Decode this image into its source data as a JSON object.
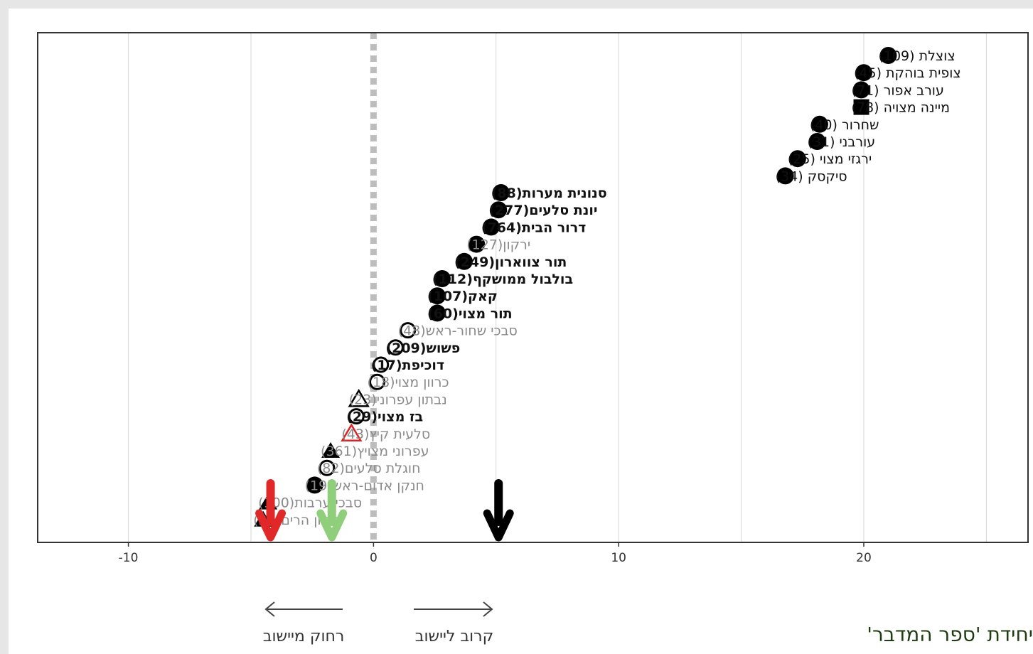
{
  "chart_data": {
    "type": "scatter",
    "title": "",
    "xlabel": "",
    "ylabel": "",
    "xlim": [
      -13.7,
      26.7
    ],
    "xticks": [
      -10,
      0,
      10,
      20
    ],
    "xtick_labels": [
      "-10",
      "0",
      "10",
      "20"
    ],
    "grid_x": [
      -10,
      -5,
      0,
      5,
      10,
      15,
      20,
      25
    ],
    "zero_line_x": 0,
    "points": [
      {
        "label": "צוצלת (109)",
        "x": 21.0,
        "marker": "circle-filled",
        "color": "#000000",
        "text_color": "#111111",
        "bold": false
      },
      {
        "label": "צופית בוהקת (45)",
        "x": 20.0,
        "marker": "circle-filled",
        "color": "#000000",
        "text_color": "#111111",
        "bold": false
      },
      {
        "label": "עורב אפור (71)",
        "x": 19.9,
        "marker": "circle-filled",
        "color": "#000000",
        "text_color": "#111111",
        "bold": false
      },
      {
        "label": "מיינה מצויה (78)",
        "x": 19.9,
        "marker": "square-filled",
        "color": "#000000",
        "text_color": "#111111",
        "bold": false
      },
      {
        "label": "שחרור (40)",
        "x": 18.2,
        "marker": "circle-filled",
        "color": "#000000",
        "text_color": "#111111",
        "bold": false
      },
      {
        "label": "עורבני (31)",
        "x": 18.1,
        "marker": "circle-filled",
        "color": "#000000",
        "text_color": "#111111",
        "bold": false
      },
      {
        "label": "ירגזי מצוי (25)",
        "x": 17.3,
        "marker": "circle-filled",
        "color": "#000000",
        "text_color": "#111111",
        "bold": false
      },
      {
        "label": "סיקסק (34)",
        "x": 16.8,
        "marker": "circle-filled",
        "color": "#000000",
        "text_color": "#111111",
        "bold": false
      },
      {
        "label": "סנונית מערות(88)",
        "x": 5.2,
        "marker": "circle-filled",
        "color": "#000000",
        "text_color": "#111111",
        "bold": true
      },
      {
        "label": "יונת סלעים(277)",
        "x": 5.1,
        "marker": "circle-filled",
        "color": "#000000",
        "text_color": "#111111",
        "bold": true
      },
      {
        "label": "דרור הבית(764)",
        "x": 4.8,
        "marker": "circle-filled",
        "color": "#000000",
        "text_color": "#111111",
        "bold": true
      },
      {
        "label": "ירקון(127)",
        "x": 4.2,
        "marker": "circle-filled",
        "color": "#000000",
        "text_color": "#8a8a8a",
        "bold": false
      },
      {
        "label": "תור צווארון(249)",
        "x": 3.7,
        "marker": "circle-filled",
        "color": "#000000",
        "text_color": "#111111",
        "bold": true
      },
      {
        "label": "בולבול ממושקף(112)",
        "x": 2.8,
        "marker": "circle-filled",
        "color": "#000000",
        "text_color": "#111111",
        "bold": true
      },
      {
        "label": "קאק(107)",
        "x": 2.6,
        "marker": "circle-filled",
        "color": "#000000",
        "text_color": "#111111",
        "bold": true
      },
      {
        "label": "תור מצוי(60)",
        "x": 2.6,
        "marker": "circle-filled",
        "color": "#000000",
        "text_color": "#111111",
        "bold": true
      },
      {
        "label": "סבכי שחור-ראש(48)",
        "x": 1.4,
        "marker": "circle-open",
        "color": "#000000",
        "text_color": "#8a8a8a",
        "bold": false
      },
      {
        "label": "פשוש(209)",
        "x": 0.9,
        "marker": "circle-open",
        "color": "#000000",
        "text_color": "#111111",
        "bold": true
      },
      {
        "label": "דוכיפת(17)",
        "x": 0.3,
        "marker": "circle-open",
        "color": "#000000",
        "text_color": "#111111",
        "bold": true
      },
      {
        "label": "כרוון מצוי(18)",
        "x": 0.15,
        "marker": "circle-open",
        "color": "#000000",
        "text_color": "#8a8a8a",
        "bold": false
      },
      {
        "label": "נבתון עפרוני(23)",
        "x": -0.6,
        "marker": "triangle-open",
        "color": "#000000",
        "text_color": "#8a8a8a",
        "bold": false
      },
      {
        "label": "בז מצוי(29)",
        "x": -0.7,
        "marker": "circle-open",
        "color": "#000000",
        "text_color": "#111111",
        "bold": true
      },
      {
        "label": "סלעית קיץ(43)",
        "x": -0.9,
        "marker": "triangle-open",
        "color": "#dd2222",
        "text_color": "#8a8a8a",
        "bold": false
      },
      {
        "label": "עפרוני מצויץ(361)",
        "x": -1.75,
        "marker": "triangle-filled",
        "color": "#000000",
        "text_color": "#8a8a8a",
        "bold": false
      },
      {
        "label": "חוגלת סלעים(82)",
        "x": -1.9,
        "marker": "circle-open",
        "color": "#000000",
        "text_color": "#8a8a8a",
        "bold": false
      },
      {
        "label": "חנקן אדום-ראש(19)",
        "x": -2.4,
        "marker": "circle-filled",
        "color": "#000000",
        "text_color": "#8a8a8a",
        "bold": false
      },
      {
        "label": "סבכי ערבות(100)",
        "x": -4.3,
        "marker": "triangle-filled",
        "color": "#000000",
        "text_color": "#8a8a8a",
        "bold": false
      },
      {
        "label": "פפיון הרים(22)",
        "x": -4.5,
        "marker": "triangle-filled",
        "color": "#000000",
        "text_color": "#8a8a8a",
        "bold": false
      }
    ],
    "arrows": [
      {
        "x": -4.2,
        "color": "#e02828"
      },
      {
        "x": -1.7,
        "color": "#8fce7a"
      },
      {
        "x": 5.1,
        "color": "#000000"
      }
    ],
    "direction_labels": {
      "far_label": "רחוק מיישוב",
      "near_label": "קרוב ליישוב"
    }
  },
  "credit_text": "יחידת 'ספר המדבר'"
}
